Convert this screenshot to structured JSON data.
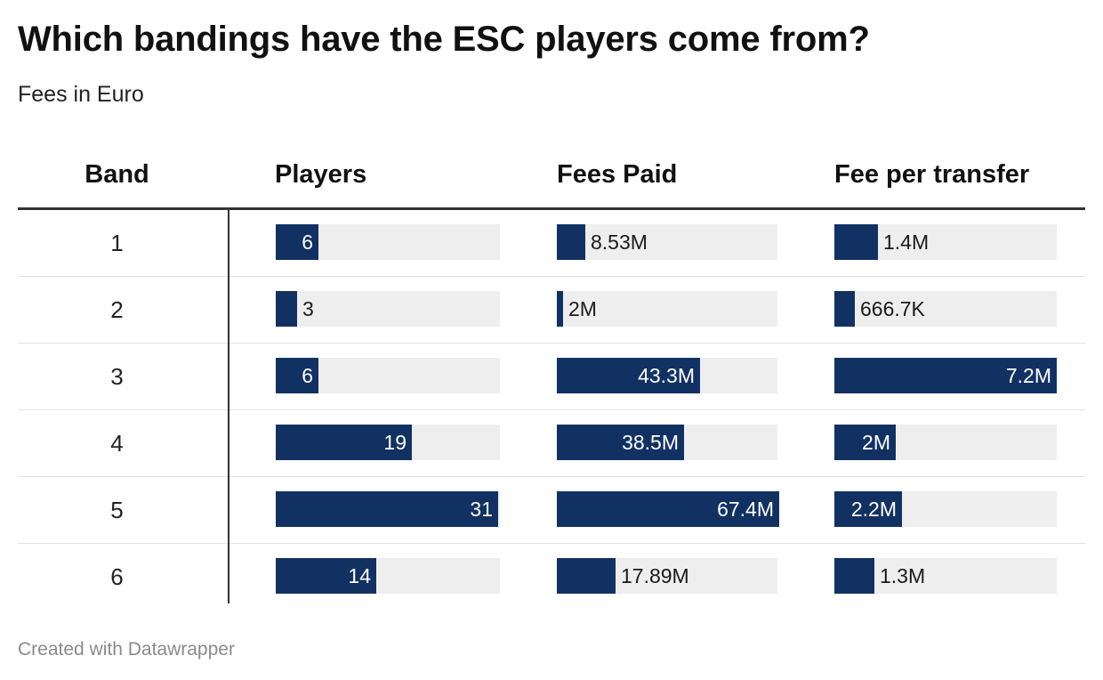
{
  "header": {
    "title": "Which bandings have the ESC players come from?",
    "subtitle": "Fees in Euro"
  },
  "columns": {
    "band": "Band",
    "players": "Players",
    "fees_paid": "Fees Paid",
    "fee_per_transfer": "Fee per transfer"
  },
  "chart_data": {
    "type": "table",
    "columns": [
      "Band",
      "Players",
      "Fees Paid",
      "Fee per transfer"
    ],
    "rows": [
      {
        "band": "1",
        "players": 6,
        "players_label": "6",
        "fees_paid": 8530000,
        "fees_paid_label": "8.53M",
        "fee_per_transfer": 1400000,
        "fee_per_transfer_label": "1.4M"
      },
      {
        "band": "2",
        "players": 3,
        "players_label": "3",
        "fees_paid": 2000000,
        "fees_paid_label": "2M",
        "fee_per_transfer": 666700,
        "fee_per_transfer_label": "666.7K"
      },
      {
        "band": "3",
        "players": 6,
        "players_label": "6",
        "fees_paid": 43300000,
        "fees_paid_label": "43.3M",
        "fee_per_transfer": 7200000,
        "fee_per_transfer_label": "7.2M"
      },
      {
        "band": "4",
        "players": 19,
        "players_label": "19",
        "fees_paid": 38500000,
        "fees_paid_label": "38.5M",
        "fee_per_transfer": 2000000,
        "fee_per_transfer_label": "2M"
      },
      {
        "band": "5",
        "players": 31,
        "players_label": "31",
        "fees_paid": 67400000,
        "fees_paid_label": "67.4M",
        "fee_per_transfer": 2200000,
        "fee_per_transfer_label": "2.2M"
      },
      {
        "band": "6",
        "players": 14,
        "players_label": "14",
        "fees_paid": 17890000,
        "fees_paid_label": "17.89M",
        "fee_per_transfer": 1300000,
        "fee_per_transfer_label": "1.3M"
      }
    ],
    "bar_color": "#123163",
    "track_color": "#eeeeee"
  },
  "footer": {
    "credit": "Created with Datawrapper"
  }
}
